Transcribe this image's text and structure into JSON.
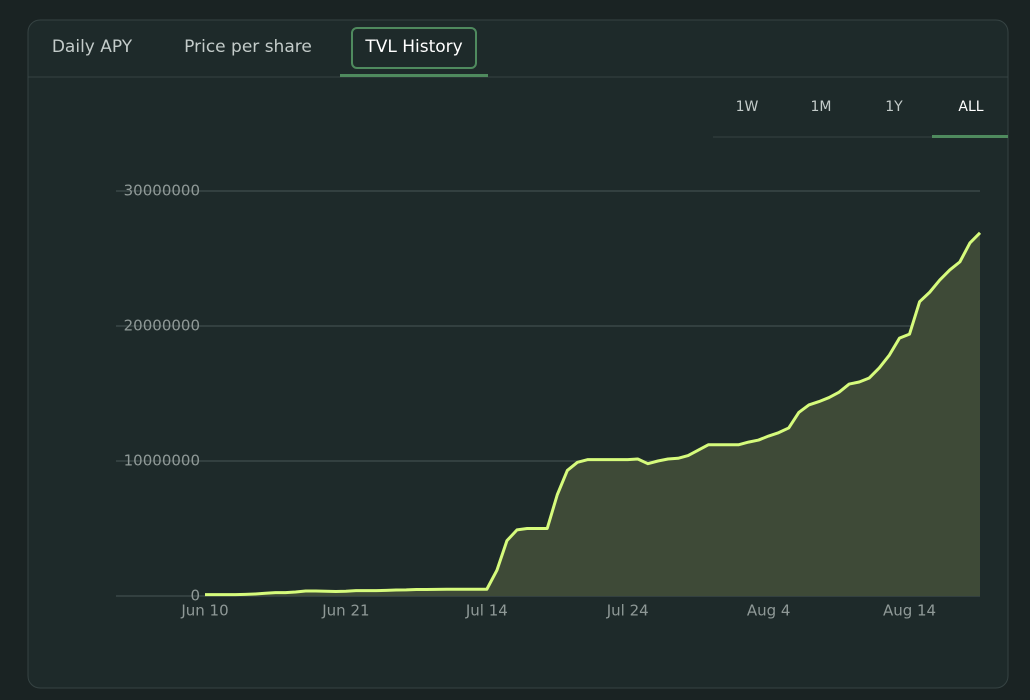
{
  "tabs": [
    "Daily APY",
    "Price per share",
    "TVL History"
  ],
  "active_tab": 2,
  "ranges": [
    "1W",
    "1M",
    "1Y",
    "ALL"
  ],
  "active_range": 3,
  "chart_data": {
    "type": "area",
    "color": "#d6fb7c",
    "fill": "#3e4a37",
    "categories": [
      "Jun 10",
      null,
      null,
      null,
      null,
      null,
      null,
      null,
      null,
      null,
      null,
      null,
      null,
      null,
      "Jun 21",
      null,
      null,
      null,
      null,
      null,
      null,
      null,
      null,
      null,
      null,
      null,
      null,
      null,
      "Jul 14",
      null,
      null,
      null,
      null,
      null,
      null,
      null,
      null,
      null,
      null,
      null,
      null,
      null,
      "Jul 24",
      null,
      null,
      null,
      null,
      null,
      null,
      null,
      null,
      null,
      null,
      null,
      null,
      null,
      "Aug 4",
      null,
      null,
      null,
      null,
      null,
      null,
      null,
      null,
      null,
      null,
      null,
      null,
      null,
      "Aug 14",
      null,
      null,
      null,
      null,
      null,
      null,
      null
    ],
    "values": [
      100000,
      100000,
      100000,
      100000,
      120000,
      150000,
      200000,
      250000,
      250000,
      300000,
      370000,
      370000,
      350000,
      330000,
      350000,
      400000,
      400000,
      400000,
      420000,
      440000,
      450000,
      480000,
      480000,
      490000,
      500000,
      500000,
      500000,
      500000,
      500000,
      1900000,
      4100000,
      4900000,
      5000000,
      5000000,
      5000000,
      7500000,
      9300000,
      9900000,
      10100000,
      10100000,
      10100000,
      10100000,
      10100000,
      10150000,
      9800000,
      10000000,
      10150000,
      10200000,
      10400000,
      10800000,
      11200000,
      11200000,
      11200000,
      11200000,
      11400000,
      11550000,
      11850000,
      12100000,
      12450000,
      13600000,
      14150000,
      14400000,
      14700000,
      15100000,
      15700000,
      15850000,
      16150000,
      16900000,
      17850000,
      19100000,
      19400000,
      21800000,
      22500000,
      23400000,
      24150000,
      24750000,
      26150000,
      26900000
    ],
    "ylim": [
      0,
      30000000
    ],
    "yticks": [
      0,
      10000000,
      20000000,
      30000000
    ],
    "grid": true
  }
}
